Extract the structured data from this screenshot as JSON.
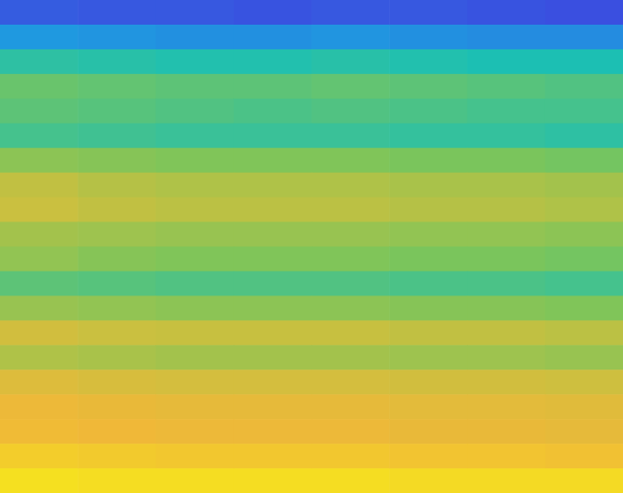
{
  "chart_data": {
    "type": "heatmap",
    "tick_labels": false,
    "cells": [
      [
        13,
        12,
        12,
        11,
        12,
        12,
        11,
        10
      ],
      [
        27,
        26,
        25,
        25,
        26,
        25,
        24,
        24
      ],
      [
        44,
        43,
        42,
        42,
        43,
        42,
        41,
        41
      ],
      [
        54,
        53,
        52,
        52,
        53,
        52,
        51,
        50
      ],
      [
        52,
        51,
        50,
        49,
        50,
        49,
        48,
        48
      ],
      [
        48,
        47,
        46,
        46,
        46,
        45,
        45,
        44
      ],
      [
        60,
        59,
        58,
        58,
        58,
        57,
        57,
        56
      ],
      [
        69,
        67,
        66,
        66,
        66,
        65,
        65,
        64
      ],
      [
        71,
        69,
        68,
        68,
        68,
        67,
        67,
        66
      ],
      [
        64,
        63,
        62,
        62,
        62,
        61,
        61,
        60
      ],
      [
        61,
        59,
        58,
        58,
        58,
        57,
        57,
        56
      ],
      [
        52,
        51,
        50,
        50,
        50,
        49,
        49,
        48
      ],
      [
        62,
        61,
        60,
        60,
        60,
        59,
        59,
        58
      ],
      [
        73,
        71,
        70,
        70,
        70,
        69,
        69,
        68
      ],
      [
        66,
        65,
        64,
        64,
        64,
        63,
        63,
        62
      ],
      [
        77,
        75,
        74,
        74,
        74,
        73,
        73,
        72
      ],
      [
        82,
        81,
        80,
        80,
        80,
        79,
        79,
        78
      ],
      [
        84,
        83,
        82,
        82,
        82,
        81,
        81,
        80
      ],
      [
        90,
        89,
        88,
        88,
        88,
        87,
        87,
        86
      ],
      [
        96,
        95,
        95,
        95,
        95,
        94,
        94,
        94
      ]
    ]
  }
}
